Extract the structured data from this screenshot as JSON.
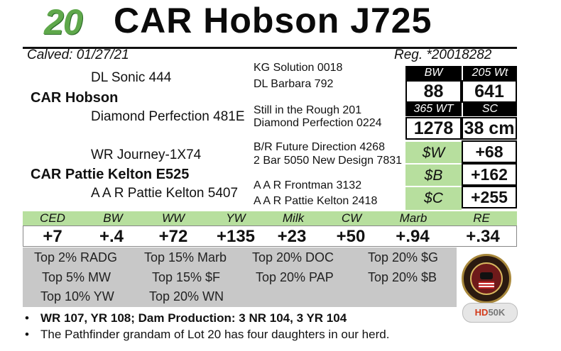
{
  "header": {
    "lot": "20",
    "name": "CAR Hobson J725"
  },
  "calved": "Calved:  01/27/21",
  "reg": "Reg. *20018282",
  "pedigree": {
    "sire_sire": "DL Sonic 444",
    "sire": "CAR Hobson",
    "sire_dam": "Diamond Perfection 481E",
    "sss": "KG Solution 0018",
    "ssd": "DL Barbara 792",
    "sds": "Still in the Rough 201",
    "sdd": "Diamond Perfection 0224",
    "dam_sire": "WR Journey-1X74",
    "dam": "CAR Pattie Kelton E525",
    "dam_dam": "A A R Pattie Kelton 5407",
    "dss": "B/R Future Direction 4268",
    "dsd": "2 Bar 5050 New Design 7831",
    "dds": "A A R Frontman 3132",
    "ddd": "A A R Pattie Kelton 2418"
  },
  "stats": {
    "bw_label": "BW",
    "bw": "88",
    "w205_label": "205 Wt",
    "w205": "641",
    "w365_label": "365 WT",
    "w365": "1278",
    "sc_label": "SC",
    "sc": "38 cm"
  },
  "indexes": [
    {
      "label": "$W",
      "value": "+68"
    },
    {
      "label": "$B",
      "value": "+162"
    },
    {
      "label": "$C",
      "value": "+255"
    }
  ],
  "epds": [
    {
      "label": "CED",
      "value": "+7"
    },
    {
      "label": "BW",
      "value": "+.4"
    },
    {
      "label": "WW",
      "value": "+72"
    },
    {
      "label": "YW",
      "value": "+135"
    },
    {
      "label": "Milk",
      "value": "+23"
    },
    {
      "label": "CW",
      "value": "+50"
    },
    {
      "label": "Marb",
      "value": "+.94"
    },
    {
      "label": "RE",
      "value": "+.34"
    }
  ],
  "percentiles": [
    [
      "Top 2% RADG",
      "Top 15% Marb",
      "Top 20% DOC",
      "Top 20% $G"
    ],
    [
      "Top 5% MW",
      "Top 15% $F",
      "Top 20% PAP",
      "Top 20% $B"
    ],
    [
      "Top 10% YW",
      "Top 20% WN"
    ]
  ],
  "bullets": [
    "WR 107, YR 108;  Dam Production: 3 NR 104, 3 YR 104",
    "The Pathfinder grandam of Lot 20 has four daughters in our herd."
  ],
  "logos": {
    "hd_prefix": "HD",
    "hd_suffix": "50K"
  }
}
